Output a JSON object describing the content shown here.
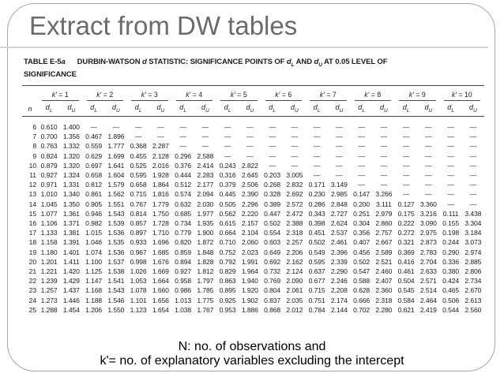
{
  "slide": {
    "title": "Extract from DW tables",
    "note_line1": "N: no. of observations and",
    "note_line2": "k'= no. of explanatory variables excluding the intercept"
  },
  "table": {
    "caption_segments": [
      {
        "t": "TABLE E-5"
      },
      {
        "t": "a",
        "i": true
      },
      {
        "gap": true
      },
      {
        "t": "DURBIN-WATSON "
      },
      {
        "t": "d",
        "i": true
      },
      {
        "t": " STATISTIC: SIGNIFICANCE POINTS OF "
      },
      {
        "t": "d",
        "i": true
      },
      {
        "t": "L",
        "sub": true
      },
      {
        "t": " AND "
      },
      {
        "t": "d",
        "i": true
      },
      {
        "t": "U",
        "sub": true
      },
      {
        "t": " AT 0.05 LEVEL OF"
      },
      {
        "br": true
      },
      {
        "t": "SIGNIFICANCE"
      }
    ],
    "n_symbol": "n",
    "k_symbol": "k′",
    "equals": "=",
    "group_numbers": [
      "1",
      "2",
      "3",
      "4",
      "5",
      "6",
      "7",
      "8",
      "9",
      "10"
    ],
    "d_symbol": "d",
    "d_subscripts": [
      "L",
      "U"
    ],
    "rows": [
      {
        "n": "6",
        "values": [
          "0.610",
          "1.400",
          "—",
          "—",
          "—",
          "—",
          "—",
          "—",
          "—",
          "—",
          "—",
          "—",
          "—",
          "—",
          "—",
          "—",
          "—",
          "—",
          "—",
          "—"
        ]
      },
      {
        "n": "7",
        "values": [
          "0.700",
          "1.356",
          "0.467",
          "1.896",
          "—",
          "—",
          "—",
          "—",
          "—",
          "—",
          "—",
          "—",
          "—",
          "—",
          "—",
          "—",
          "—",
          "—",
          "—",
          "—"
        ]
      },
      {
        "n": "8",
        "values": [
          "0.763",
          "1.332",
          "0.559",
          "1.777",
          "0.368",
          "2.287",
          "—",
          "—",
          "—",
          "—",
          "—",
          "—",
          "—",
          "—",
          "—",
          "—",
          "—",
          "—",
          "—",
          "—"
        ]
      },
      {
        "n": "9",
        "values": [
          "0.824",
          "1.320",
          "0.629",
          "1.699",
          "0.455",
          "2.128",
          "0.296",
          "2.588",
          "—",
          "—",
          "—",
          "—",
          "—",
          "—",
          "—",
          "—",
          "—",
          "—",
          "—",
          "—"
        ]
      },
      {
        "n": "10",
        "values": [
          "0.879",
          "1.320",
          "0.697",
          "1.641",
          "0.525",
          "2.016",
          "0.376",
          "2.414",
          "0.243",
          "2.822",
          "—",
          "—",
          "—",
          "—",
          "—",
          "—",
          "—",
          "—",
          "—",
          "—"
        ]
      },
      {
        "n": "11",
        "values": [
          "0.927",
          "1.324",
          "0.658",
          "1.604",
          "0.595",
          "1.928",
          "0.444",
          "2.283",
          "0.316",
          "2.645",
          "0.203",
          "3.005",
          "—",
          "—",
          "—",
          "—",
          "—",
          "—",
          "—",
          "—"
        ]
      },
      {
        "n": "12",
        "values": [
          "0.971",
          "1.331",
          "0.812",
          "1.579",
          "0.658",
          "1.864",
          "0.512",
          "2.177",
          "0.379",
          "2.506",
          "0.268",
          "2.832",
          "0.171",
          "3.149",
          "—",
          "—",
          "—",
          "—",
          "—",
          "—"
        ]
      },
      {
        "n": "13",
        "values": [
          "1.010",
          "1.340",
          "0.861",
          "1.562",
          "0.715",
          "1.816",
          "0.574",
          "2.094",
          "0.445",
          "2.390",
          "0.328",
          "2.692",
          "0.230",
          "2.985",
          "0.147",
          "3.266",
          "—",
          "—",
          "—",
          "—"
        ]
      },
      {
        "n": "14",
        "values": [
          "1.045",
          "1.350",
          "0.905",
          "1.551",
          "0.767",
          "1.779",
          "0.632",
          "2.030",
          "0.505",
          "2.296",
          "0.389",
          "2.572",
          "0.286",
          "2.848",
          "0.200",
          "3.111",
          "0.127",
          "3.360",
          "—",
          "—"
        ]
      },
      {
        "n": "15",
        "values": [
          "1.077",
          "1.361",
          "0.946",
          "1.543",
          "0.814",
          "1.750",
          "0.685",
          "1.977",
          "0.562",
          "2.220",
          "0.447",
          "2.472",
          "0.343",
          "2.727",
          "0.251",
          "2.979",
          "0.175",
          "3.216",
          "0.111",
          "3.438"
        ]
      },
      {
        "n": "16",
        "values": [
          "1.106",
          "1.371",
          "0.982",
          "1.539",
          "0.857",
          "1.728",
          "0.734",
          "1.935",
          "0.615",
          "2.157",
          "0.502",
          "2.388",
          "0.398",
          "2.624",
          "0.304",
          "2.860",
          "0.222",
          "3.090",
          "0.155",
          "3.304"
        ]
      },
      {
        "n": "17",
        "values": [
          "1.133",
          "1.381",
          "1.015",
          "1.536",
          "0.897",
          "1.710",
          "0.779",
          "1.900",
          "0.664",
          "2.104",
          "0.554",
          "2.318",
          "0.451",
          "2.537",
          "0.356",
          "2.757",
          "0.272",
          "2.975",
          "0.198",
          "3.184"
        ]
      },
      {
        "n": "18",
        "values": [
          "1.158",
          "1.391",
          "1.046",
          "1.535",
          "0.933",
          "1.696",
          "0.820",
          "1.872",
          "0.710",
          "2.060",
          "0.603",
          "2.257",
          "0.502",
          "2.461",
          "0.407",
          "2.667",
          "0.321",
          "2.873",
          "0.244",
          "3.073"
        ]
      },
      {
        "n": "19",
        "values": [
          "1.180",
          "1.401",
          "1.074",
          "1.536",
          "0.967",
          "1.685",
          "0.859",
          "1.848",
          "0.752",
          "2.023",
          "0.649",
          "2.206",
          "0.549",
          "2.396",
          "0.456",
          "2.589",
          "0.369",
          "2.783",
          "0.290",
          "2.974"
        ]
      },
      {
        "n": "20",
        "values": [
          "1.201",
          "1.411",
          "1.100",
          "1.537",
          "0.998",
          "1.676",
          "0.894",
          "1.828",
          "0.792",
          "1.991",
          "0.692",
          "2.162",
          "0.595",
          "2.339",
          "0.502",
          "2.521",
          "0.416",
          "2.704",
          "0.336",
          "2.885"
        ]
      },
      {
        "n": "21",
        "values": [
          "1.221",
          "1.420",
          "1.125",
          "1.538",
          "1.026",
          "1.669",
          "0.927",
          "1.812",
          "0.829",
          "1.964",
          "0.732",
          "2.124",
          "0.637",
          "2.290",
          "0.547",
          "2.460",
          "0.461",
          "2.633",
          "0.380",
          "2.806"
        ]
      },
      {
        "n": "22",
        "values": [
          "1.239",
          "1.429",
          "1.147",
          "1.541",
          "1.053",
          "1.664",
          "0.958",
          "1.797",
          "0.863",
          "1.940",
          "0.769",
          "2.090",
          "0.677",
          "2.246",
          "0.588",
          "2.407",
          "0.504",
          "2.571",
          "0.424",
          "2.734"
        ]
      },
      {
        "n": "23",
        "values": [
          "1.257",
          "1.437",
          "1.168",
          "1.543",
          "1.078",
          "1.660",
          "0.986",
          "1.785",
          "0.895",
          "1.920",
          "0.804",
          "2.061",
          "0.715",
          "2.208",
          "0.628",
          "2.360",
          "0.545",
          "2.514",
          "0.465",
          "2.670"
        ]
      },
      {
        "n": "24",
        "values": [
          "1.273",
          "1.446",
          "1.188",
          "1.546",
          "1.101",
          "1.656",
          "1.013",
          "1.775",
          "0.925",
          "1.902",
          "0.837",
          "2.035",
          "0.751",
          "2.174",
          "0.666",
          "2.318",
          "0.584",
          "2.464",
          "0.506",
          "2.613"
        ]
      },
      {
        "n": "25",
        "values": [
          "1.288",
          "1.454",
          "1.206",
          "1.550",
          "1.123",
          "1.654",
          "1.038",
          "1.767",
          "0.953",
          "1.886",
          "0.868",
          "2.012",
          "0.784",
          "2.144",
          "0.702",
          "2.280",
          "0.621",
          "2.419",
          "0.544",
          "2.560"
        ]
      }
    ]
  }
}
